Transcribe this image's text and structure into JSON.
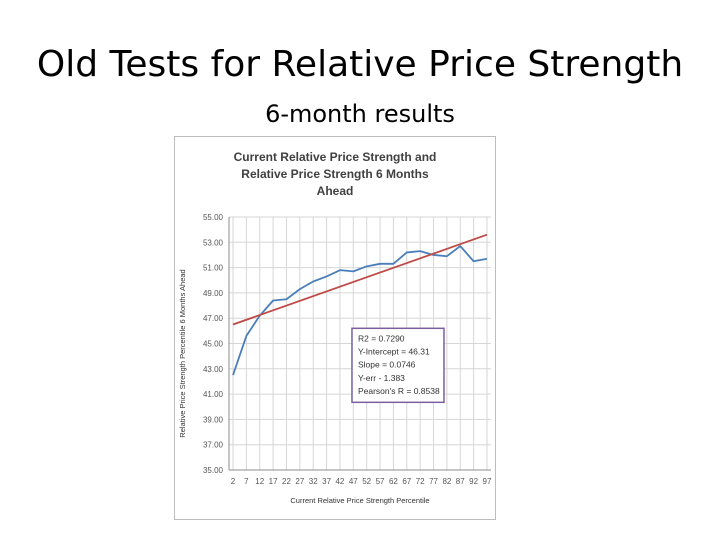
{
  "slide": {
    "title": "Old Tests for Relative Price Strength",
    "subtitle": "6-month results"
  },
  "chart_data": {
    "type": "line",
    "title": [
      "Current Relative Price Strength and",
      "Relative Price Strength 6 Months",
      "Ahead"
    ],
    "xlabel": "Current Relative Price Strength Percentile",
    "ylabel": "Relative Price Strength Percentile 6 Months Ahead",
    "x_ticks": [
      "2",
      "7",
      "12",
      "17",
      "22",
      "27",
      "32",
      "37",
      "42",
      "47",
      "52",
      "57",
      "62",
      "67",
      "72",
      "77",
      "82",
      "87",
      "92",
      "97"
    ],
    "y_ticks": [
      "35.00",
      "37.00",
      "39.00",
      "41.00",
      "43.00",
      "45.00",
      "47.00",
      "49.00",
      "51.00",
      "53.00",
      "55.00"
    ],
    "ylim": [
      35,
      55
    ],
    "grid": true,
    "series": [
      {
        "color": "#4a7ebb",
        "values": [
          {
            "x": 2,
            "y": 42.5
          },
          {
            "x": 7,
            "y": 45.6
          },
          {
            "x": 12,
            "y": 47.2
          },
          {
            "x": 17,
            "y": 48.4
          },
          {
            "x": 22,
            "y": 48.5
          },
          {
            "x": 27,
            "y": 49.3
          },
          {
            "x": 32,
            "y": 49.9
          },
          {
            "x": 37,
            "y": 50.3
          },
          {
            "x": 42,
            "y": 50.8
          },
          {
            "x": 47,
            "y": 50.7
          },
          {
            "x": 52,
            "y": 51.1
          },
          {
            "x": 57,
            "y": 51.3
          },
          {
            "x": 62,
            "y": 51.3
          },
          {
            "x": 67,
            "y": 52.2
          },
          {
            "x": 72,
            "y": 52.3
          },
          {
            "x": 77,
            "y": 52.0
          },
          {
            "x": 82,
            "y": 51.9
          },
          {
            "x": 87,
            "y": 52.7
          },
          {
            "x": 92,
            "y": 51.5
          },
          {
            "x": 97,
            "y": 51.7
          }
        ]
      },
      {
        "color": "#be4b48",
        "values": [
          {
            "x": 2,
            "y": 46.5
          },
          {
            "x": 97,
            "y": 53.6
          }
        ]
      }
    ],
    "annotation": {
      "lines": [
        "R2 = 0.7290",
        "Y-Intercept = 46.31",
        "Slope = 0.0746",
        "Y-err - 1.383",
        "Pearson's R = 0.8538"
      ],
      "border_color": "#7a5fa0"
    }
  }
}
